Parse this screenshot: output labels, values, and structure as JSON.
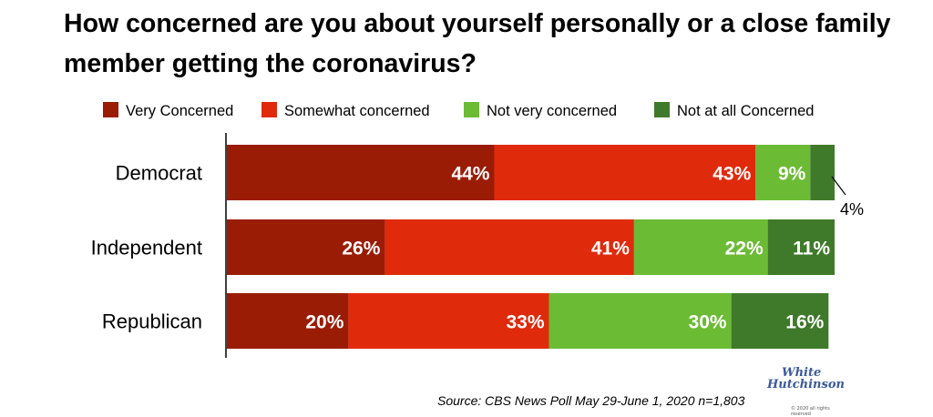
{
  "title": "How concerned are you about yourself personally or a close family member getting the coronavirus?",
  "source": "Source: CBS News Poll May 29-June 1, 2020 n=1,803",
  "logo": {
    "line1": "White",
    "line2": "Hutchinson",
    "tagline": "© 2020 all rights reserved"
  },
  "chart_data": {
    "type": "bar",
    "orientation": "horizontal",
    "stacked": true,
    "title": "How concerned are you about yourself personally or a close family member getting the coronavirus?",
    "categories": [
      "Democrat",
      "Independent",
      "Republican"
    ],
    "series": [
      {
        "name": "Very Concerned",
        "color": "#9b1c04",
        "values": [
          44,
          26,
          20
        ]
      },
      {
        "name": "Somewhat concerned",
        "color": "#e02a0c",
        "values": [
          43,
          41,
          33
        ]
      },
      {
        "name": "Not very concerned",
        "color": "#6cbb35",
        "values": [
          9,
          22,
          30
        ]
      },
      {
        "name": "Not at all Concerned",
        "color": "#3f7a2a",
        "values": [
          4,
          11,
          16
        ]
      }
    ],
    "value_suffix": "%",
    "legend_position": "top",
    "callout": {
      "category": "Democrat",
      "series": "Not at all Concerned",
      "label": "4%"
    }
  }
}
